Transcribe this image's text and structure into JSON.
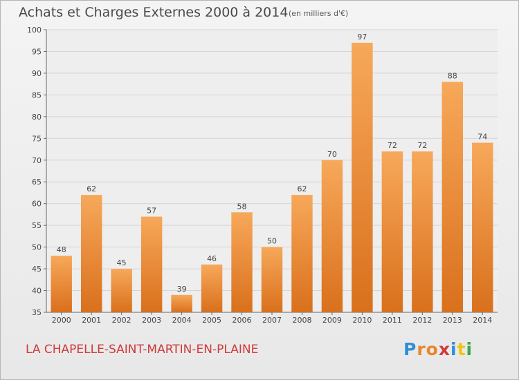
{
  "chart_data": {
    "type": "bar",
    "title": "Achats et Charges Externes 2000 à 2014",
    "subtitle": "(en milliers d'€)",
    "categories": [
      "2000",
      "2001",
      "2002",
      "2003",
      "2004",
      "2005",
      "2006",
      "2007",
      "2008",
      "2009",
      "2010",
      "2011",
      "2012",
      "2013",
      "2014"
    ],
    "values": [
      48,
      62,
      45,
      57,
      39,
      46,
      58,
      50,
      62,
      70,
      97,
      72,
      72,
      88,
      74
    ],
    "yticks": [
      35,
      40,
      45,
      50,
      55,
      60,
      65,
      70,
      75,
      80,
      85,
      90,
      95,
      100
    ],
    "ylim": [
      35,
      100
    ],
    "grid": true,
    "bar_color": "#e8862a"
  },
  "place_name": "LA CHAPELLE-SAINT-MARTIN-EN-PLAINE",
  "logo": {
    "text": "Proxiti",
    "letter_colors": [
      "#2d8fd8",
      "#e8862a",
      "#e8862a",
      "#d03a3a",
      "#2d8fd8",
      "#f2c40f",
      "#3aa84a"
    ]
  }
}
